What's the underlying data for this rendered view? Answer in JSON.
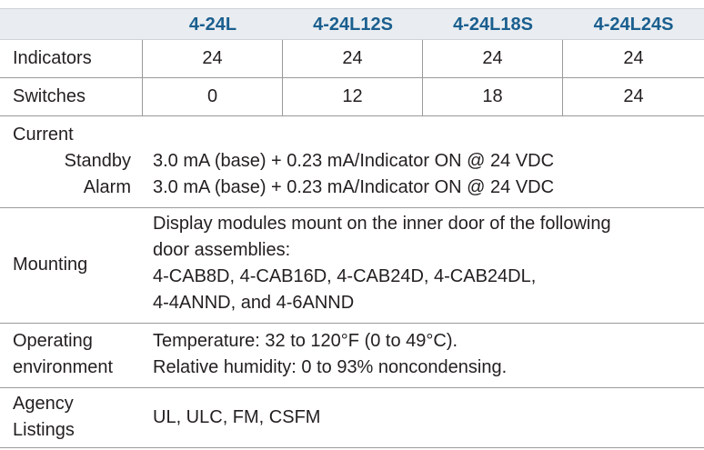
{
  "header": {
    "models": [
      "4-24L",
      "4-24L12S",
      "4-24L18S",
      "4-24L24S"
    ]
  },
  "rows": {
    "indicators": {
      "label": "Indicators",
      "values": [
        "24",
        "24",
        "24",
        "24"
      ]
    },
    "switches": {
      "label": "Switches",
      "values": [
        "0",
        "12",
        "18",
        "24"
      ]
    }
  },
  "current": {
    "label": "Current",
    "standby_label": "Standby",
    "standby_value": "3.0 mA (base) + 0.23 mA/Indicator ON @ 24 VDC",
    "alarm_label": "Alarm",
    "alarm_value": "3.0 mA (base) + 0.23 mA/Indicator ON @ 24 VDC"
  },
  "mounting": {
    "label": "Mounting",
    "lines": [
      "Display modules mount on the inner door of the following",
      "door assemblies:",
      "4-CAB8D, 4-CAB16D, 4-CAB24D, 4-CAB24DL,",
      "4-4ANND, and 4-6ANND"
    ]
  },
  "operating": {
    "label_lines": [
      "Operating",
      "environment"
    ],
    "lines": [
      "Temperature: 32 to 120°F (0 to 49°C).",
      "Relative humidity: 0 to 93% noncondensing."
    ]
  },
  "agency": {
    "label_lines": [
      "Agency",
      "Listings"
    ],
    "value": "UL, ULC, FM, CSFM"
  },
  "colors": {
    "header_bg": "#e9edf1",
    "header_text": "#1a5f8f",
    "rule": "#9a9a9a"
  }
}
